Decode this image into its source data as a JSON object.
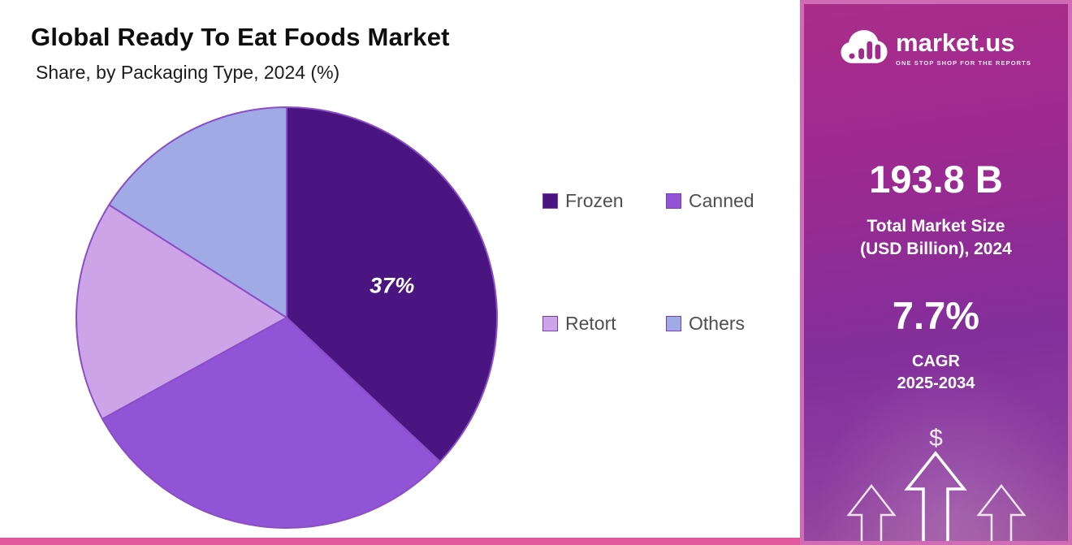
{
  "page": {
    "title": "Global Ready To Eat Foods Market",
    "subtitle": "Share, by Packaging Type, 2024 (%)"
  },
  "chart_data": {
    "type": "pie",
    "title": "Global Ready To Eat Foods Market",
    "subtitle": "Share, by Packaging Type, 2024 (%)",
    "categories": [
      "Frozen",
      "Canned",
      "Retort",
      "Others"
    ],
    "values": [
      37,
      30,
      17,
      16
    ],
    "unit": "%",
    "colors": [
      "#4a1581",
      "#9254d6",
      "#cda4e8",
      "#a0abe6"
    ],
    "stroke_color": "#8a4ec5",
    "start_angle_deg": -90,
    "direction": "clockwise",
    "legend_position": "right",
    "data_labels": [
      {
        "category": "Frozen",
        "text": "37%"
      }
    ],
    "slice_label": "37%"
  },
  "legend": {
    "items": [
      {
        "label": "Frozen",
        "color": "#4a1581"
      },
      {
        "label": "Canned",
        "color": "#9254d6"
      },
      {
        "label": "Retort",
        "color": "#cda4e8"
      },
      {
        "label": "Others",
        "color": "#a0abe6"
      }
    ]
  },
  "sidebar": {
    "brand": {
      "name": "market.us",
      "tagline": "ONE STOP SHOP FOR THE REPORTS"
    },
    "market_size": {
      "value": "193.8 B",
      "label_line1": "Total Market Size",
      "label_line2": "(USD Billion), 2024"
    },
    "cagr": {
      "value": "7.7%",
      "label": "CAGR",
      "period": "2025-2034"
    },
    "dollar_symbol": "$",
    "colors": {
      "gradient_top": "#ab2c8b",
      "gradient_bottom": "#8d3d9f",
      "border": "#cf6cb5"
    }
  },
  "footer": {
    "bar_color": "#e1589d"
  }
}
